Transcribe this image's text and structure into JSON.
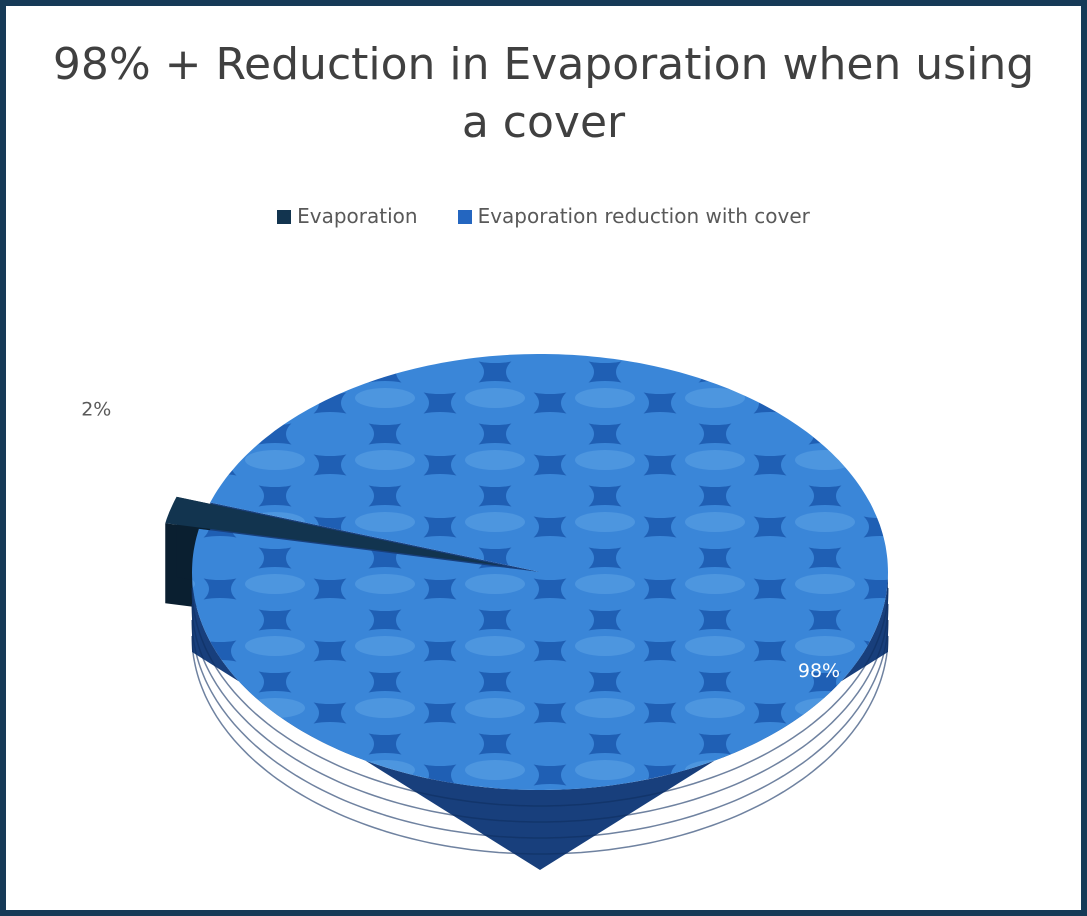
{
  "chart_data": {
    "type": "pie",
    "title": "98% + Reduction in Evaporation when using a cover",
    "categories": [
      "Evaporation",
      "Evaporation reduction with cover"
    ],
    "values": [
      2,
      98
    ],
    "value_labels": [
      "2%",
      "98%"
    ],
    "colors": [
      "#12344f",
      "#2466c0"
    ],
    "legend": "top"
  }
}
